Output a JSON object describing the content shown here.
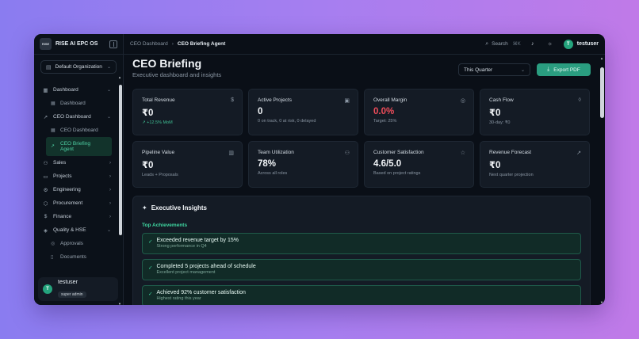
{
  "brand": {
    "name": "RISE AI EPC OS",
    "logo_text": "RISE"
  },
  "org": {
    "label": "Default Organization"
  },
  "sidebar": {
    "items": [
      {
        "label": "Dashboard",
        "icon": "dashboard-icon"
      },
      {
        "label": "Dashboard",
        "icon": "grid-icon",
        "sub": true
      },
      {
        "label": "CEO Dashboard",
        "icon": "trend-icon"
      },
      {
        "label": "CEO Dashboard",
        "icon": "grid-icon",
        "sub": true
      },
      {
        "label": "CEO Briefing Agent",
        "icon": "trend-icon",
        "sub": true,
        "active": true
      },
      {
        "label": "Sales",
        "icon": "users-icon"
      },
      {
        "label": "Projects",
        "icon": "folder-icon"
      },
      {
        "label": "Engineering",
        "icon": "gear-icon"
      },
      {
        "label": "Procurement",
        "icon": "box-icon"
      },
      {
        "label": "Finance",
        "icon": "dollar-icon"
      },
      {
        "label": "Quality & HSE",
        "icon": "shield-icon"
      },
      {
        "label": "Approvals",
        "icon": "check-icon",
        "sub": true
      },
      {
        "label": "Documents",
        "icon": "doc-icon",
        "sub": true
      }
    ]
  },
  "user": {
    "name": "testuser",
    "initial": "T",
    "role": "super admin"
  },
  "topbar": {
    "breadcrumb_parent": "CEO Dashboard",
    "breadcrumb_current": "CEO Briefing Agent",
    "search_label": "Search",
    "search_shortcut": "⌘K",
    "username": "testuser",
    "initial": "T"
  },
  "page": {
    "title": "CEO Briefing",
    "subtitle": "Executive dashboard and insights",
    "period": "This Quarter",
    "export_label": "Export PDF"
  },
  "metrics": [
    {
      "title": "Total Revenue",
      "value": "₹0",
      "note": "↗ +12.5% MoM",
      "icon": "$",
      "note_positive": true
    },
    {
      "title": "Active Projects",
      "value": "0",
      "note": "0 on track, 0 at risk, 0 delayed",
      "icon": "▣"
    },
    {
      "title": "Overall Margin",
      "value": "0.0%",
      "note": "Target: 25%",
      "icon": "◎",
      "value_negative": true
    },
    {
      "title": "Cash Flow",
      "value": "₹0",
      "note": "30-day: ₹0",
      "icon": "◊"
    },
    {
      "title": "Pipeline Value",
      "value": "₹0",
      "note": "Leads + Proposals",
      "icon": "▥"
    },
    {
      "title": "Team Utilization",
      "value": "78%",
      "note": "Across all roles",
      "icon": "⚇"
    },
    {
      "title": "Customer Satisfaction",
      "value": "4.6/5.0",
      "note": "Based on project ratings",
      "icon": "☆"
    },
    {
      "title": "Revenue Forecast",
      "value": "₹0",
      "note": "Next quarter projection",
      "icon": "↗"
    }
  ],
  "insights": {
    "title": "Executive Insights",
    "section": "Top Achievements",
    "achievements": [
      {
        "title": "Exceeded revenue target by 15%",
        "sub": "Strong performance in Q4"
      },
      {
        "title": "Completed 5 projects ahead of schedule",
        "sub": "Excellent project management"
      },
      {
        "title": "Achieved 92% customer satisfaction",
        "sub": "Highest rating this year"
      }
    ]
  }
}
